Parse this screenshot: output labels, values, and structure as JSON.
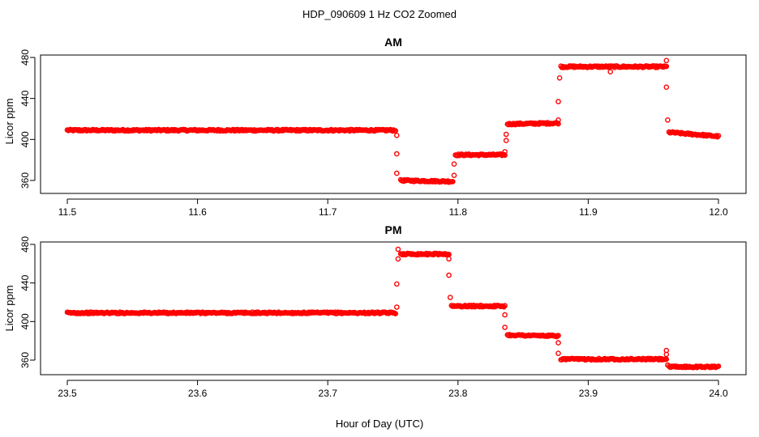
{
  "figure": {
    "title": "HDP_090609  1 Hz CO2 Zoomed",
    "xlabel": "Hour of Day (UTC)"
  },
  "colors": {
    "points": "#ff0000",
    "axes": "#000000"
  },
  "chart_data": [
    {
      "type": "scatter",
      "title": "AM",
      "ylabel": "Licor ppm",
      "xlabel": "",
      "xlim": [
        11.5,
        12.0
      ],
      "ylim": [
        352,
        482
      ],
      "xticks": [
        "11.5",
        "11.6",
        "11.7",
        "11.8",
        "11.9",
        "12.0"
      ],
      "yticks": [
        "360",
        "400",
        "440",
        "480"
      ],
      "xtick_values": [
        11.5,
        11.6,
        11.7,
        11.8,
        11.9,
        12.0
      ],
      "ytick_values": [
        360,
        400,
        440,
        480
      ],
      "grid": false,
      "plateaus": [
        {
          "x0": 11.5,
          "x1": 11.752,
          "y0": 409,
          "y1": 409
        },
        {
          "x0": 11.756,
          "x1": 11.796,
          "y0": 360,
          "y1": 359
        },
        {
          "x0": 11.798,
          "x1": 11.836,
          "y0": 385,
          "y1": 385
        },
        {
          "x0": 11.838,
          "x1": 11.877,
          "y0": 415,
          "y1": 416
        },
        {
          "x0": 11.879,
          "x1": 11.96,
          "y0": 471,
          "y1": 471
        },
        {
          "x0": 11.962,
          "x1": 12.0,
          "y0": 407,
          "y1": 403
        }
      ],
      "transitions": [
        {
          "x": 11.753,
          "y": 404
        },
        {
          "x": 11.753,
          "y": 386
        },
        {
          "x": 11.753,
          "y": 367
        },
        {
          "x": 11.797,
          "y": 365
        },
        {
          "x": 11.797,
          "y": 376
        },
        {
          "x": 11.836,
          "y": 388
        },
        {
          "x": 11.837,
          "y": 399
        },
        {
          "x": 11.837,
          "y": 405
        },
        {
          "x": 11.877,
          "y": 419
        },
        {
          "x": 11.877,
          "y": 437
        },
        {
          "x": 11.878,
          "y": 460
        },
        {
          "x": 11.917,
          "y": 466
        },
        {
          "x": 11.96,
          "y": 477
        },
        {
          "x": 11.96,
          "y": 451
        },
        {
          "x": 11.961,
          "y": 419
        }
      ]
    },
    {
      "type": "scatter",
      "title": "PM",
      "ylabel": "Licor ppm",
      "xlabel": "",
      "xlim": [
        23.5,
        24.0
      ],
      "ylim": [
        347,
        482
      ],
      "xticks": [
        "23.5",
        "23.6",
        "23.7",
        "23.8",
        "23.9",
        "24.0"
      ],
      "yticks": [
        "360",
        "400",
        "440",
        "480"
      ],
      "xtick_values": [
        23.5,
        23.6,
        23.7,
        23.8,
        23.9,
        24.0
      ],
      "ytick_values": [
        360,
        400,
        440,
        480
      ],
      "grid": false,
      "plateaus": [
        {
          "x0": 23.5,
          "x1": 23.752,
          "y0": 409,
          "y1": 409
        },
        {
          "x0": 23.756,
          "x1": 23.793,
          "y0": 470,
          "y1": 470
        },
        {
          "x0": 23.795,
          "x1": 23.836,
          "y0": 416,
          "y1": 416
        },
        {
          "x0": 23.838,
          "x1": 23.877,
          "y0": 386,
          "y1": 385
        },
        {
          "x0": 23.879,
          "x1": 23.96,
          "y0": 361,
          "y1": 361
        },
        {
          "x0": 23.962,
          "x1": 24.0,
          "y0": 353,
          "y1": 353
        }
      ],
      "transitions": [
        {
          "x": 23.753,
          "y": 415
        },
        {
          "x": 23.753,
          "y": 439
        },
        {
          "x": 23.754,
          "y": 465
        },
        {
          "x": 23.754,
          "y": 475
        },
        {
          "x": 23.793,
          "y": 465
        },
        {
          "x": 23.793,
          "y": 448
        },
        {
          "x": 23.794,
          "y": 425
        },
        {
          "x": 23.836,
          "y": 407
        },
        {
          "x": 23.836,
          "y": 394
        },
        {
          "x": 23.877,
          "y": 378
        },
        {
          "x": 23.877,
          "y": 367
        },
        {
          "x": 23.96,
          "y": 370
        },
        {
          "x": 23.96,
          "y": 366
        },
        {
          "x": 23.961,
          "y": 355
        }
      ]
    }
  ]
}
